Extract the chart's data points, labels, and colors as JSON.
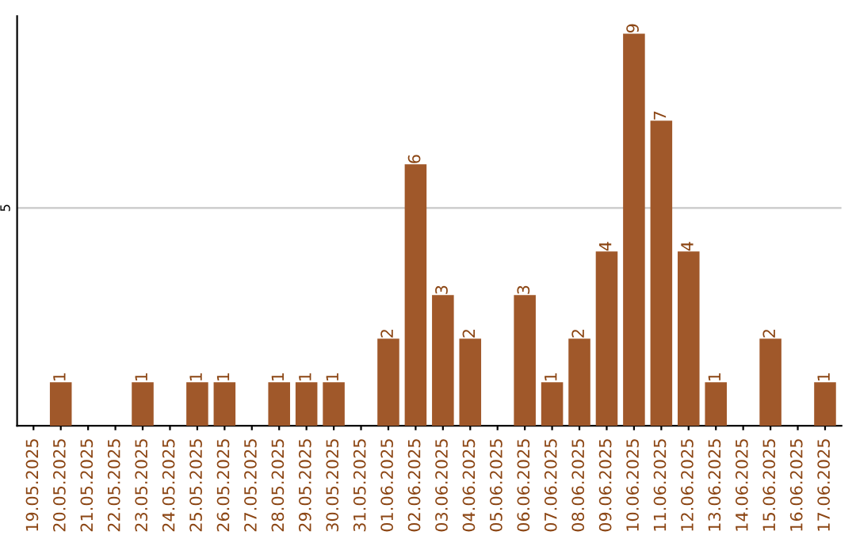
{
  "chart_data": {
    "type": "bar",
    "categories": [
      "19.05.2025",
      "20.05.2025",
      "21.05.2025",
      "22.05.2025",
      "23.05.2025",
      "24.05.2025",
      "25.05.2025",
      "26.05.2025",
      "27.05.2025",
      "28.05.2025",
      "29.05.2025",
      "30.05.2025",
      "31.05.2025",
      "01.06.2025",
      "02.06.2025",
      "03.06.2025",
      "04.06.2025",
      "05.06.2025",
      "06.06.2025",
      "07.06.2025",
      "08.06.2025",
      "09.06.2025",
      "10.06.2025",
      "11.06.2025",
      "12.06.2025",
      "13.06.2025",
      "14.06.2025",
      "15.06.2025",
      "16.06.2025",
      "17.06.2025"
    ],
    "values": [
      0,
      1,
      0,
      0,
      1,
      0,
      1,
      1,
      0,
      1,
      1,
      1,
      0,
      2,
      6,
      3,
      2,
      0,
      3,
      1,
      2,
      4,
      9,
      7,
      4,
      1,
      0,
      2,
      0,
      1
    ],
    "value_labels": [
      null,
      "1",
      null,
      null,
      "1",
      null,
      "1",
      "1",
      null,
      "1",
      "1",
      "1",
      null,
      "2",
      "6",
      "3",
      "2",
      null,
      "3",
      "1",
      "2",
      "4",
      "9",
      "7",
      "4",
      "1",
      null,
      "2",
      null,
      "1"
    ],
    "color": "#a0582a",
    "ylim": [
      0,
      9.4
    ],
    "yticks": [
      5
    ],
    "grid": "y"
  }
}
